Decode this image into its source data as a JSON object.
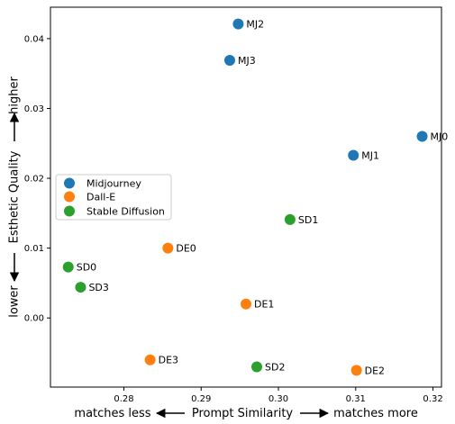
{
  "chart_data": {
    "type": "scatter",
    "title": "",
    "xlabel": {
      "left": "matches less",
      "center": "Prompt Similarity",
      "right": "matches more"
    },
    "ylabel": {
      "bottom": "lower",
      "center": "Esthetic Quality",
      "top": "higher"
    },
    "xlim": [
      0.2705,
      0.3211
    ],
    "ylim": [
      -0.0099,
      0.0445
    ],
    "x_ticks": [
      0.28,
      0.29,
      0.3,
      0.31,
      0.32
    ],
    "x_tick_labels": [
      "0.28",
      "0.29",
      "0.30",
      "0.31",
      "0.32"
    ],
    "y_ticks": [
      0.0,
      0.01,
      0.02,
      0.03,
      0.04
    ],
    "y_tick_labels": [
      "0.00",
      "0.01",
      "0.02",
      "0.03",
      "0.04"
    ],
    "grid": false,
    "legend": "center-left",
    "series": [
      {
        "name": "Midjourney",
        "color": "#1f77b4",
        "points": [
          {
            "label": "MJ0",
            "x": 0.3186,
            "y": 0.026
          },
          {
            "label": "MJ1",
            "x": 0.3097,
            "y": 0.0233
          },
          {
            "label": "MJ2",
            "x": 0.2948,
            "y": 0.0421
          },
          {
            "label": "MJ3",
            "x": 0.2937,
            "y": 0.0369
          }
        ]
      },
      {
        "name": "Dall-E",
        "color": "#ff7f0e",
        "points": [
          {
            "label": "DE0",
            "x": 0.2857,
            "y": 0.01
          },
          {
            "label": "DE1",
            "x": 0.2958,
            "y": 0.002
          },
          {
            "label": "DE2",
            "x": 0.3101,
            "y": -0.0075
          },
          {
            "label": "DE3",
            "x": 0.2834,
            "y": -0.006
          }
        ]
      },
      {
        "name": "Stable Diffusion",
        "color": "#2ca02c",
        "points": [
          {
            "label": "SD0",
            "x": 0.2728,
            "y": 0.0073
          },
          {
            "label": "SD1",
            "x": 0.3015,
            "y": 0.0141
          },
          {
            "label": "SD2",
            "x": 0.2972,
            "y": -0.007
          },
          {
            "label": "SD3",
            "x": 0.2744,
            "y": 0.0044
          }
        ]
      }
    ]
  }
}
